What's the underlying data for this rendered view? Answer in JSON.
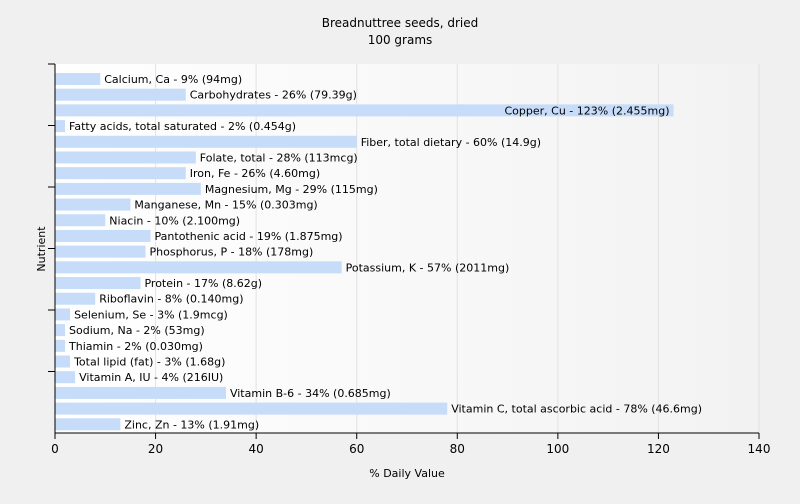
{
  "chart_data": {
    "type": "bar",
    "orientation": "horizontal",
    "title": "Breadnuttree seeds, dried",
    "subtitle": "100 grams",
    "xlabel": "% Daily Value",
    "ylabel": "Nutrient",
    "xlim": [
      0,
      140
    ],
    "xticks": [
      0,
      20,
      40,
      60,
      80,
      100,
      120,
      140
    ],
    "grid": "vertical",
    "bar_color": "#c6dcf9",
    "categories": [
      "Calcium, Ca",
      "Carbohydrates",
      "Copper, Cu",
      "Fatty acids, total saturated",
      "Fiber, total dietary",
      "Folate, total",
      "Iron, Fe",
      "Magnesium, Mg",
      "Manganese, Mn",
      "Niacin",
      "Pantothenic acid",
      "Phosphorus, P",
      "Potassium, K",
      "Protein",
      "Riboflavin",
      "Selenium, Se",
      "Sodium, Na",
      "Thiamin",
      "Total lipid (fat)",
      "Vitamin A, IU",
      "Vitamin B-6",
      "Vitamin C, total ascorbic acid",
      "Zinc, Zn"
    ],
    "values": [
      9,
      26,
      123,
      2,
      60,
      28,
      26,
      29,
      15,
      10,
      19,
      18,
      57,
      17,
      8,
      3,
      2,
      2,
      3,
      4,
      34,
      78,
      13
    ],
    "labels": [
      "Calcium, Ca - 9% (94mg)",
      "Carbohydrates - 26% (79.39g)",
      "Copper, Cu - 123% (2.455mg)",
      "Fatty acids, total saturated - 2% (0.454g)",
      "Fiber, total dietary - 60% (14.9g)",
      "Folate, total - 28% (113mcg)",
      "Iron, Fe - 26% (4.60mg)",
      "Magnesium, Mg - 29% (115mg)",
      "Manganese, Mn - 15% (0.303mg)",
      "Niacin - 10% (2.100mg)",
      "Pantothenic acid - 19% (1.875mg)",
      "Phosphorus, P - 18% (178mg)",
      "Potassium, K - 57% (2011mg)",
      "Protein - 17% (8.62g)",
      "Riboflavin - 8% (0.140mg)",
      "Selenium, Se - 3% (1.9mcg)",
      "Sodium, Na - 2% (53mg)",
      "Thiamin - 2% (0.030mg)",
      "Total lipid (fat) - 3% (1.68g)",
      "Vitamin A, IU - 4% (216IU)",
      "Vitamin B-6 - 34% (0.685mg)",
      "Vitamin C, total ascorbic acid - 78% (46.6mg)",
      "Zinc, Zn - 13% (1.91mg)"
    ]
  }
}
